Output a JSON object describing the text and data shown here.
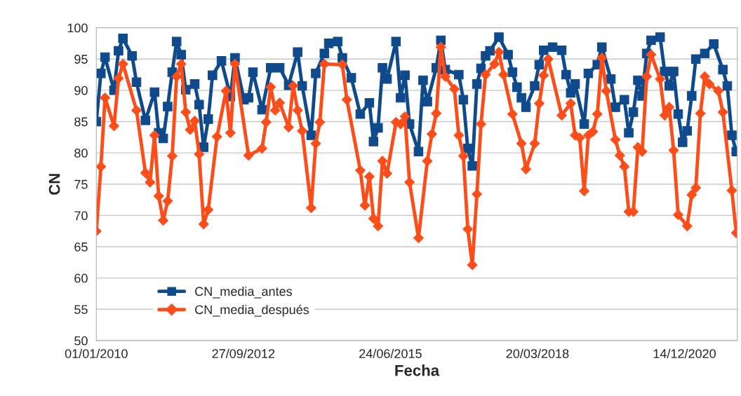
{
  "chart_data": {
    "type": "line",
    "xlabel": "Fecha",
    "ylabel": "CN",
    "xlim": [
      "2010-01-01",
      "2021-12-08"
    ],
    "xticks": [
      {
        "value": "2010-01-01",
        "label": "01/01/2010"
      },
      {
        "value": "2012-09-27",
        "label": "27/09/2012"
      },
      {
        "value": "2015-06-24",
        "label": "24/06/2015"
      },
      {
        "value": "2018-03-20",
        "label": "20/03/2018"
      },
      {
        "value": "2020-12-14",
        "label": "14/12/2020"
      }
    ],
    "ylim": [
      50,
      100
    ],
    "yticks": [
      50,
      55,
      60,
      65,
      70,
      75,
      80,
      85,
      90,
      95,
      100
    ],
    "grid": "y",
    "legend": "bottom left",
    "series": [
      {
        "name": "CN_media_antes",
        "color": "#0f4a8c",
        "marker": "square",
        "x": [
          "2010-01",
          "2010-02",
          "2010-03",
          "2010-05",
          "2010-06",
          "2010-07",
          "2010-09",
          "2010-10",
          "2010-12",
          "2011-02",
          "2011-03",
          "2011-04",
          "2011-05",
          "2011-06",
          "2011-07",
          "2011-08",
          "2011-09",
          "2011-11",
          "2011-12",
          "2012-01",
          "2012-02",
          "2012-03",
          "2012-05",
          "2012-07",
          "2012-08",
          "2012-10",
          "2012-11",
          "2012-12",
          "2013-02",
          "2013-04",
          "2013-06",
          "2013-08",
          "2013-10",
          "2013-11",
          "2014-01",
          "2014-02",
          "2014-04",
          "2014-05",
          "2014-07",
          "2014-08",
          "2014-10",
          "2014-12",
          "2015-02",
          "2015-03",
          "2015-04",
          "2015-05",
          "2015-06",
          "2015-08",
          "2015-09",
          "2015-10",
          "2015-11",
          "2016-01",
          "2016-02",
          "2016-03",
          "2016-05",
          "2016-06",
          "2016-07",
          "2016-10",
          "2016-11",
          "2016-12",
          "2017-01",
          "2017-02",
          "2017-03",
          "2017-04",
          "2017-05",
          "2017-07",
          "2017-09",
          "2017-10",
          "2017-11",
          "2017-12",
          "2018-01",
          "2018-03",
          "2018-04",
          "2018-05",
          "2018-07",
          "2018-09",
          "2018-10",
          "2018-11",
          "2018-12",
          "2019-02",
          "2019-03",
          "2019-05",
          "2019-06",
          "2019-08",
          "2019-09",
          "2019-11",
          "2019-12",
          "2020-01",
          "2020-02",
          "2020-03",
          "2020-04",
          "2020-05",
          "2020-07",
          "2020-08",
          "2020-09",
          "2020-10",
          "2020-11",
          "2020-12",
          "2021-01",
          "2021-02",
          "2021-03",
          "2021-05",
          "2021-07",
          "2021-09",
          "2021-10",
          "2021-11",
          "2021-12"
        ],
        "values": [
          85,
          92.7,
          95.3,
          90,
          96.3,
          98.3,
          95.5,
          91.3,
          85.2,
          89.7,
          83.2,
          82.3,
          87.4,
          92.9,
          97.8,
          95.7,
          90.1,
          91,
          87.7,
          80.9,
          85.4,
          92.4,
          94.7,
          89,
          95.2,
          88.5,
          88.8,
          92.9,
          86.9,
          93.6,
          93.6,
          90.8,
          96.1,
          90.7,
          82.8,
          92.7,
          95.9,
          97.5,
          97.8,
          95.2,
          92,
          86.2,
          88,
          81.8,
          84,
          93.6,
          91.8,
          97.8,
          88.8,
          92.4,
          84.6,
          80.2,
          91.6,
          88.2,
          93.6,
          98,
          93.3,
          92.5,
          88.5,
          80.7,
          77.9,
          91,
          93.5,
          95.5,
          96.3,
          98.5,
          95.7,
          92.9,
          90.5,
          88.8,
          87.3,
          90.7,
          94.1,
          96.4,
          96.9,
          96.4,
          92.5,
          89.6,
          91,
          84.6,
          92.7,
          94.1,
          96.9,
          91.8,
          87.3,
          88.5,
          83.2,
          86.5,
          91.6,
          89.1,
          95.9,
          98,
          98.5,
          93,
          90.7,
          93,
          86.2,
          81.7,
          83.5,
          89.1,
          95,
          95.9,
          97.4,
          93.3,
          90.7,
          82.8,
          80.2
        ]
      },
      {
        "name": "CN_media_después",
        "color": "#ff4d1a",
        "marker": "diamond",
        "x": [
          "2010-01",
          "2010-02",
          "2010-03",
          "2010-05",
          "2010-06",
          "2010-07",
          "2010-10",
          "2010-12",
          "2011-01",
          "2011-02",
          "2011-03",
          "2011-04",
          "2011-05",
          "2011-06",
          "2011-07",
          "2011-08",
          "2011-09",
          "2011-10",
          "2011-11",
          "2011-12",
          "2012-01",
          "2012-02",
          "2012-04",
          "2012-06",
          "2012-07",
          "2012-08",
          "2012-11",
          "2013-02",
          "2013-03",
          "2013-04",
          "2013-05",
          "2013-06",
          "2013-08",
          "2013-09",
          "2013-10",
          "2013-11",
          "2014-01",
          "2014-02",
          "2014-03",
          "2014-04",
          "2014-08",
          "2014-09",
          "2014-12",
          "2015-01",
          "2015-02",
          "2015-03",
          "2015-04",
          "2015-05",
          "2015-06",
          "2015-08",
          "2015-09",
          "2015-10",
          "2015-11",
          "2016-01",
          "2016-03",
          "2016-04",
          "2016-05",
          "2016-06",
          "2016-07",
          "2016-09",
          "2016-10",
          "2016-11",
          "2016-12",
          "2017-01",
          "2017-02",
          "2017-03",
          "2017-04",
          "2017-06",
          "2017-07",
          "2017-08",
          "2017-10",
          "2017-12",
          "2018-01",
          "2018-03",
          "2018-04",
          "2018-05",
          "2018-06",
          "2018-09",
          "2018-11",
          "2018-12",
          "2019-01",
          "2019-02",
          "2019-03",
          "2019-04",
          "2019-05",
          "2019-06",
          "2019-07",
          "2019-09",
          "2019-10",
          "2019-11",
          "2019-12",
          "2020-01",
          "2020-02",
          "2020-03",
          "2020-04",
          "2020-05",
          "2020-07",
          "2020-08",
          "2020-09",
          "2020-10",
          "2020-11",
          "2021-01",
          "2021-02",
          "2021-03",
          "2021-04",
          "2021-05",
          "2021-06",
          "2021-08",
          "2021-09",
          "2021-11",
          "2021-12"
        ],
        "values": [
          67.5,
          77.8,
          88.8,
          84.3,
          91.9,
          94.2,
          86.8,
          76.8,
          75.3,
          82.8,
          73.1,
          69.2,
          72.3,
          79.5,
          92.2,
          94.2,
          86.5,
          83.7,
          85.1,
          79.8,
          68.6,
          70.9,
          82.6,
          89.9,
          83.2,
          94.2,
          79.6,
          80.7,
          84.9,
          90.5,
          86.8,
          88,
          84.1,
          90.7,
          86.8,
          83.5,
          71.2,
          81.5,
          84.9,
          94.2,
          94.1,
          88.5,
          77.2,
          71.6,
          76.2,
          69.5,
          68.3,
          78.7,
          76.7,
          84.9,
          84.6,
          85.8,
          75.3,
          66.4,
          78.7,
          83,
          86.3,
          96.9,
          92.2,
          90.2,
          82.8,
          79.5,
          67.8,
          62.1,
          73.4,
          84.6,
          92.5,
          94.2,
          96.1,
          92.5,
          86.2,
          81.5,
          77.4,
          81.5,
          87.9,
          92.4,
          95,
          86,
          87.9,
          82.8,
          82.4,
          73.9,
          82.8,
          83.4,
          86.2,
          95.2,
          89.9,
          82.1,
          79.6,
          77.8,
          70.6,
          70.6,
          80.9,
          80.2,
          92.2,
          95.7,
          91.8,
          86,
          87.3,
          80.4,
          70.1,
          68.3,
          73.3,
          74.4,
          86.3,
          92.2,
          91,
          89.9,
          86.5,
          74,
          67.2
        ]
      }
    ]
  }
}
